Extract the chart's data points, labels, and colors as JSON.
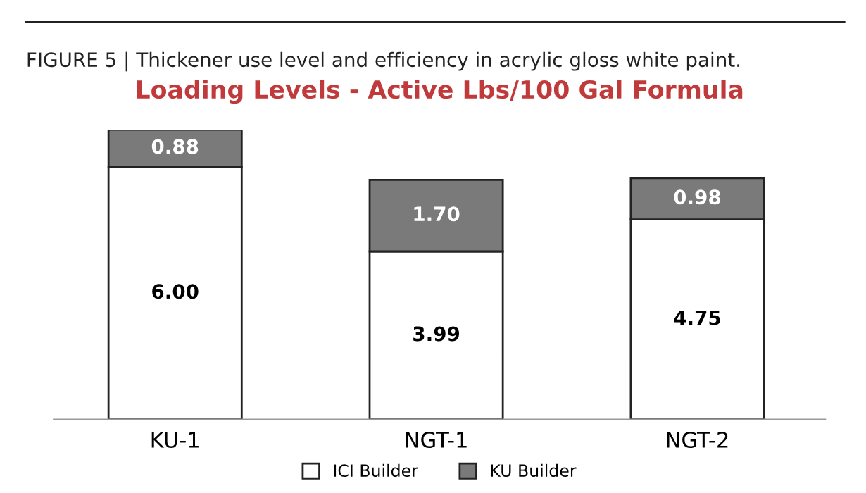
{
  "chart_data": {
    "type": "bar",
    "stacked": true,
    "title": "Loading Levels - Active Lbs/100 Gal Formula",
    "annotations": [
      "FIGURE 5 | Thickener use level and efficiency in acrylic gloss white paint."
    ],
    "categories": [
      "KU-1",
      "NGT-1",
      "NGT-2"
    ],
    "series": [
      {
        "name": "ICI Builder",
        "color": "#ffffff",
        "values": [
          6.0,
          3.99,
          4.75
        ],
        "value_labels": [
          "6.00",
          "3.99",
          "4.75"
        ]
      },
      {
        "name": "KU Builder",
        "color": "#7a7a7a",
        "values": [
          0.88,
          1.7,
          0.98
        ],
        "value_labels": [
          "0.88",
          "1.70",
          "0.98"
        ]
      }
    ],
    "legend": "bottom"
  }
}
